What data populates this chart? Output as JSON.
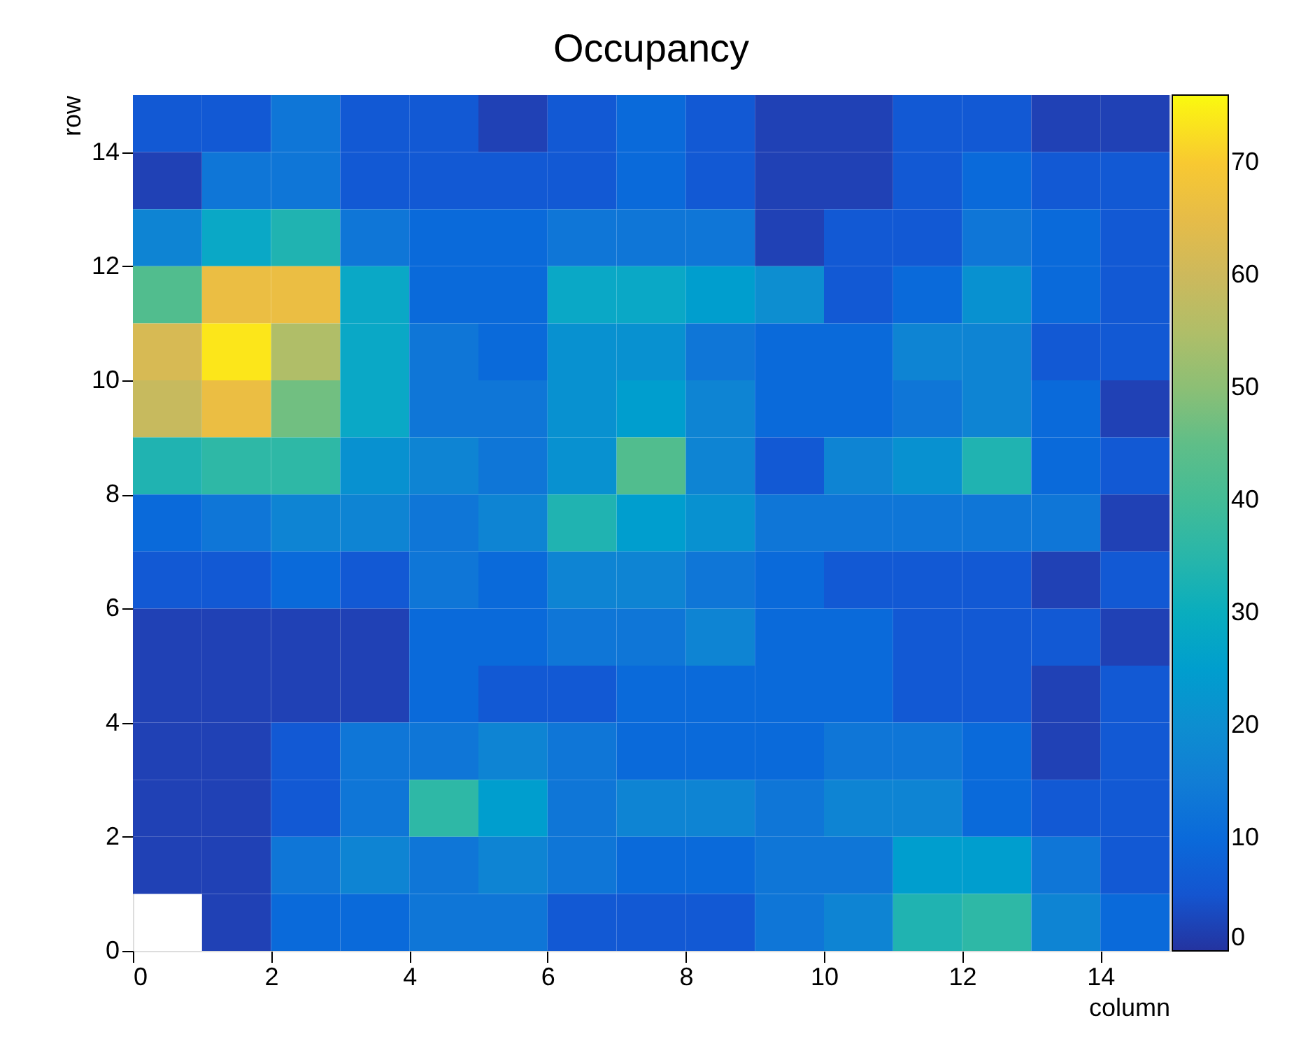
{
  "chart_data": {
    "type": "heatmap",
    "title": "Occupancy",
    "xlabel": "column",
    "ylabel": "row",
    "xlim": [
      0,
      15
    ],
    "xticks": [
      0,
      2,
      4,
      6,
      8,
      10,
      12,
      14
    ],
    "ylim": [
      0,
      15
    ],
    "yticks": [
      0,
      2,
      4,
      6,
      8,
      10,
      12,
      14
    ],
    "clim": [
      0,
      76
    ],
    "cticks": [
      0,
      10,
      20,
      30,
      40,
      50,
      60,
      70
    ],
    "grid": false,
    "cells": [
      [
        6,
        6,
        13,
        6,
        6,
        2,
        6,
        10,
        6,
        2,
        2,
        6,
        6,
        2,
        2
      ],
      [
        2,
        13,
        13,
        6,
        6,
        6,
        6,
        10,
        6,
        2,
        2,
        6,
        10,
        6,
        6
      ],
      [
        17,
        28,
        33,
        13,
        10,
        10,
        13,
        13,
        13,
        2,
        6,
        6,
        13,
        10,
        6
      ],
      [
        43,
        66,
        66,
        28,
        10,
        10,
        28,
        28,
        25,
        20,
        6,
        10,
        21,
        10,
        6
      ],
      [
        62,
        74,
        55,
        28,
        13,
        10,
        21,
        21,
        13,
        10,
        10,
        17,
        17,
        6,
        6
      ],
      [
        59,
        66,
        47,
        28,
        13,
        13,
        21,
        25,
        17,
        10,
        10,
        13,
        17,
        10,
        2
      ],
      [
        33,
        36,
        36,
        21,
        17,
        13,
        21,
        43,
        17,
        6,
        17,
        21,
        33,
        10,
        6
      ],
      [
        10,
        13,
        17,
        17,
        13,
        17,
        33,
        25,
        21,
        13,
        13,
        13,
        13,
        13,
        2
      ],
      [
        6,
        6,
        10,
        6,
        13,
        10,
        17,
        17,
        13,
        10,
        6,
        6,
        6,
        2,
        6
      ],
      [
        2,
        2,
        2,
        2,
        10,
        10,
        13,
        13,
        17,
        10,
        10,
        6,
        6,
        6,
        2
      ],
      [
        2,
        2,
        2,
        2,
        10,
        6,
        6,
        10,
        10,
        10,
        10,
        6,
        6,
        2,
        6
      ],
      [
        2,
        2,
        6,
        13,
        13,
        17,
        13,
        10,
        10,
        10,
        13,
        13,
        10,
        2,
        6
      ],
      [
        2,
        2,
        6,
        13,
        36,
        25,
        13,
        17,
        17,
        13,
        17,
        17,
        10,
        6,
        6
      ],
      [
        2,
        2,
        13,
        17,
        13,
        17,
        13,
        10,
        10,
        13,
        13,
        25,
        25,
        13,
        6
      ],
      [
        null,
        2,
        10,
        10,
        13,
        13,
        6,
        6,
        6,
        13,
        17,
        33,
        36,
        17,
        10
      ]
    ]
  }
}
